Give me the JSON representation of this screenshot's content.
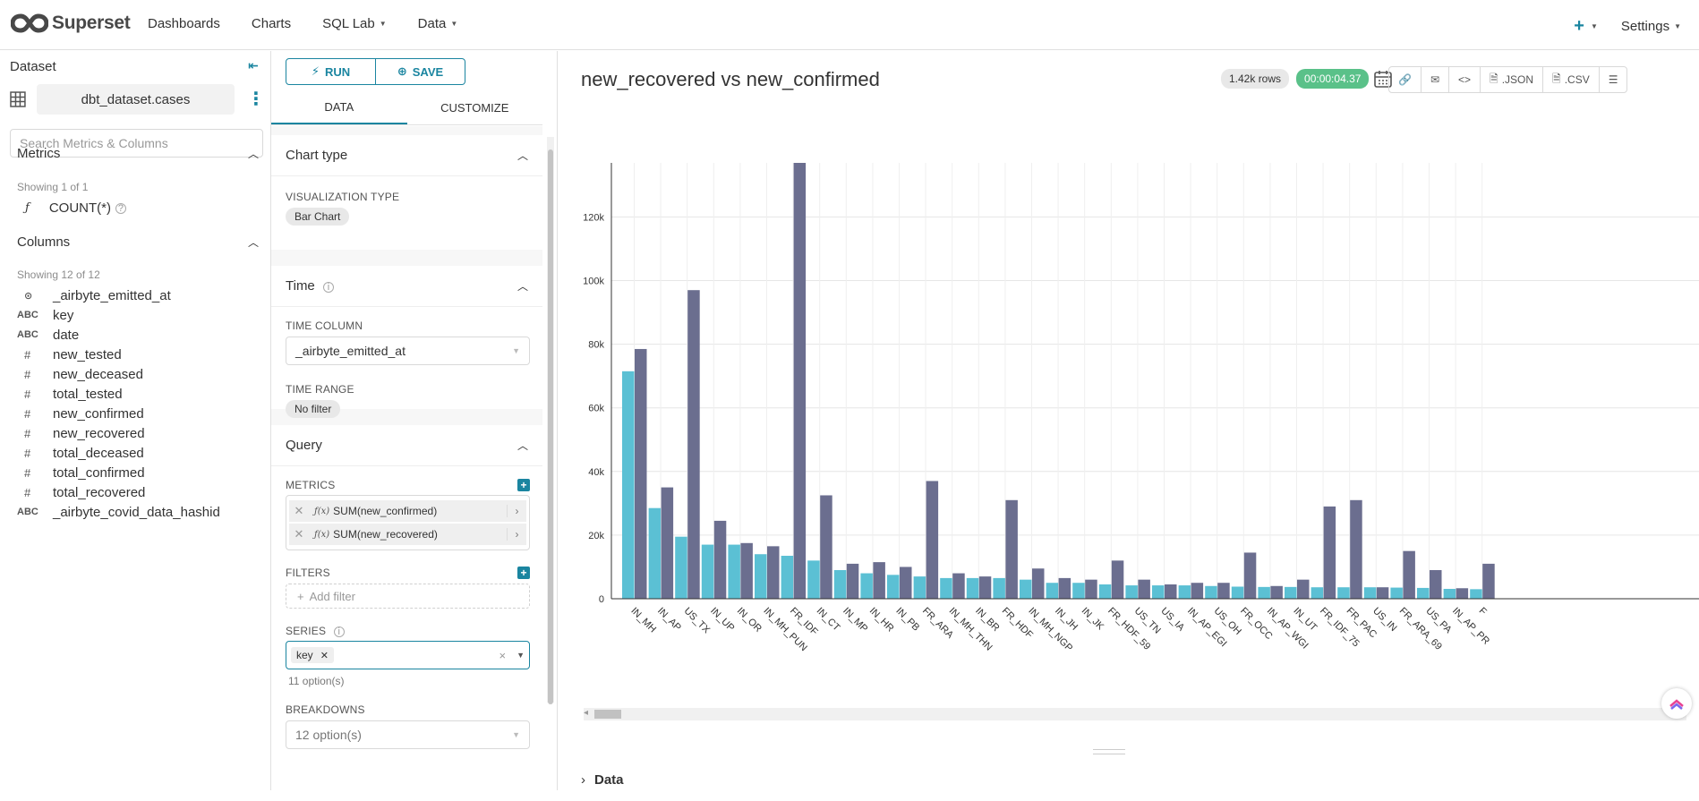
{
  "app": {
    "name": "Superset"
  },
  "nav": [
    {
      "label": "Dashboards",
      "has_caret": false
    },
    {
      "label": "Charts",
      "has_caret": false
    },
    {
      "label": "SQL Lab",
      "has_caret": true
    },
    {
      "label": "Data",
      "has_caret": true
    }
  ],
  "topright": {
    "plus": "+",
    "settings_label": "Settings"
  },
  "dataset": {
    "heading": "Dataset",
    "name": "dbt_dataset.cases",
    "search_placeholder": "Search Metrics & Columns",
    "metrics_heading": "Metrics",
    "metrics_showing": "Showing 1 of 1",
    "metrics": [
      {
        "fx": "ƒ",
        "label": "COUNT(*)"
      }
    ],
    "columns_heading": "Columns",
    "columns_showing": "Showing 12 of 12",
    "columns": [
      {
        "type": "⊙",
        "label": "_airbyte_emitted_at"
      },
      {
        "type": "ABC",
        "label": "key"
      },
      {
        "type": "ABC",
        "label": "date"
      },
      {
        "type": "#",
        "label": "new_tested"
      },
      {
        "type": "#",
        "label": "new_deceased"
      },
      {
        "type": "#",
        "label": "total_tested"
      },
      {
        "type": "#",
        "label": "new_confirmed"
      },
      {
        "type": "#",
        "label": "new_recovered"
      },
      {
        "type": "#",
        "label": "total_deceased"
      },
      {
        "type": "#",
        "label": "total_confirmed"
      },
      {
        "type": "#",
        "label": "total_recovered"
      },
      {
        "type": "ABC",
        "label": "_airbyte_covid_data_hashid"
      }
    ]
  },
  "controls": {
    "run_label": "RUN",
    "save_label": "SAVE",
    "tab_data": "DATA",
    "tab_customize": "CUSTOMIZE",
    "chart_type_heading": "Chart type",
    "viz_type_label": "VISUALIZATION TYPE",
    "viz_type_value": "Bar Chart",
    "time_heading": "Time",
    "time_column_label": "TIME COLUMN",
    "time_column_value": "_airbyte_emitted_at",
    "time_range_label": "TIME RANGE",
    "time_range_value": "No filter",
    "query_heading": "Query",
    "metrics_label": "METRICS",
    "metric_pills": [
      "SUM(new_confirmed)",
      "SUM(new_recovered)"
    ],
    "filters_label": "FILTERS",
    "add_filter": "Add filter",
    "series_label": "SERIES",
    "series_tag": "key",
    "series_hint": "11 option(s)",
    "breakdowns_label": "BREAKDOWNS",
    "breakdowns_value": "12 option(s)"
  },
  "chart_header": {
    "title": "new_recovered vs new_confirmed",
    "rows_badge": "1.42k rows",
    "time_badge": "00:00:04.37",
    "json_label": ".JSON",
    "csv_label": ".CSV"
  },
  "data_section_label": "Data",
  "colors": {
    "accent": "#1a85a0",
    "confirmed": "#5bc0d4",
    "recovered": "#6b6e8f"
  },
  "chart_data": {
    "type": "bar",
    "title": "new_recovered vs new_confirmed",
    "categories": [
      "IN_MH",
      "IN_AP",
      "US_TX",
      "IN_UP",
      "IN_OR",
      "IN_MH_PUN",
      "FR_IDF",
      "IN_CT",
      "IN_MP",
      "IN_HR",
      "IN_PB",
      "FR_ARA",
      "IN_MH_THN",
      "IN_BR",
      "FR_HDF",
      "IN_MH_NGP",
      "IN_JH",
      "IN_JK",
      "FR_HDF_59",
      "US_TN",
      "US_IA",
      "IN_AP_EGI",
      "US_OH",
      "FR_OCC",
      "IN_AP_WGI",
      "IN_UT",
      "FR_IDF_75",
      "FR_PAC",
      "US_IN",
      "FR_ARA_69",
      "US_PA",
      "IN_AP_PR",
      "F"
    ],
    "series": [
      {
        "name": "SUM(new_confirmed)",
        "values": [
          71500,
          28500,
          19500,
          17000,
          17000,
          14000,
          13500,
          12000,
          9000,
          8000,
          7500,
          7000,
          6500,
          6500,
          6500,
          6000,
          5000,
          5000,
          4500,
          4200,
          4200,
          4200,
          4000,
          3800,
          3700,
          3700,
          3600,
          3600,
          3600,
          3500,
          3400,
          3100,
          3000
        ]
      },
      {
        "name": "SUM(new_recovered)",
        "values": [
          78500,
          35000,
          97000,
          24500,
          17500,
          16500,
          137000,
          32500,
          11000,
          11500,
          10000,
          37000,
          8000,
          7000,
          31000,
          9500,
          6500,
          6000,
          12000,
          6000,
          4500,
          5000,
          5000,
          14500,
          4000,
          6000,
          29000,
          31000,
          3600,
          15000,
          9000,
          3300,
          11000
        ]
      }
    ],
    "xlabel": "",
    "ylabel": "",
    "ylim": [
      0,
      137000
    ],
    "yticks": [
      "0",
      "20k",
      "40k",
      "60k",
      "80k",
      "100k",
      "120k"
    ],
    "ytick_values": [
      0,
      20000,
      40000,
      60000,
      80000,
      100000,
      120000
    ]
  }
}
